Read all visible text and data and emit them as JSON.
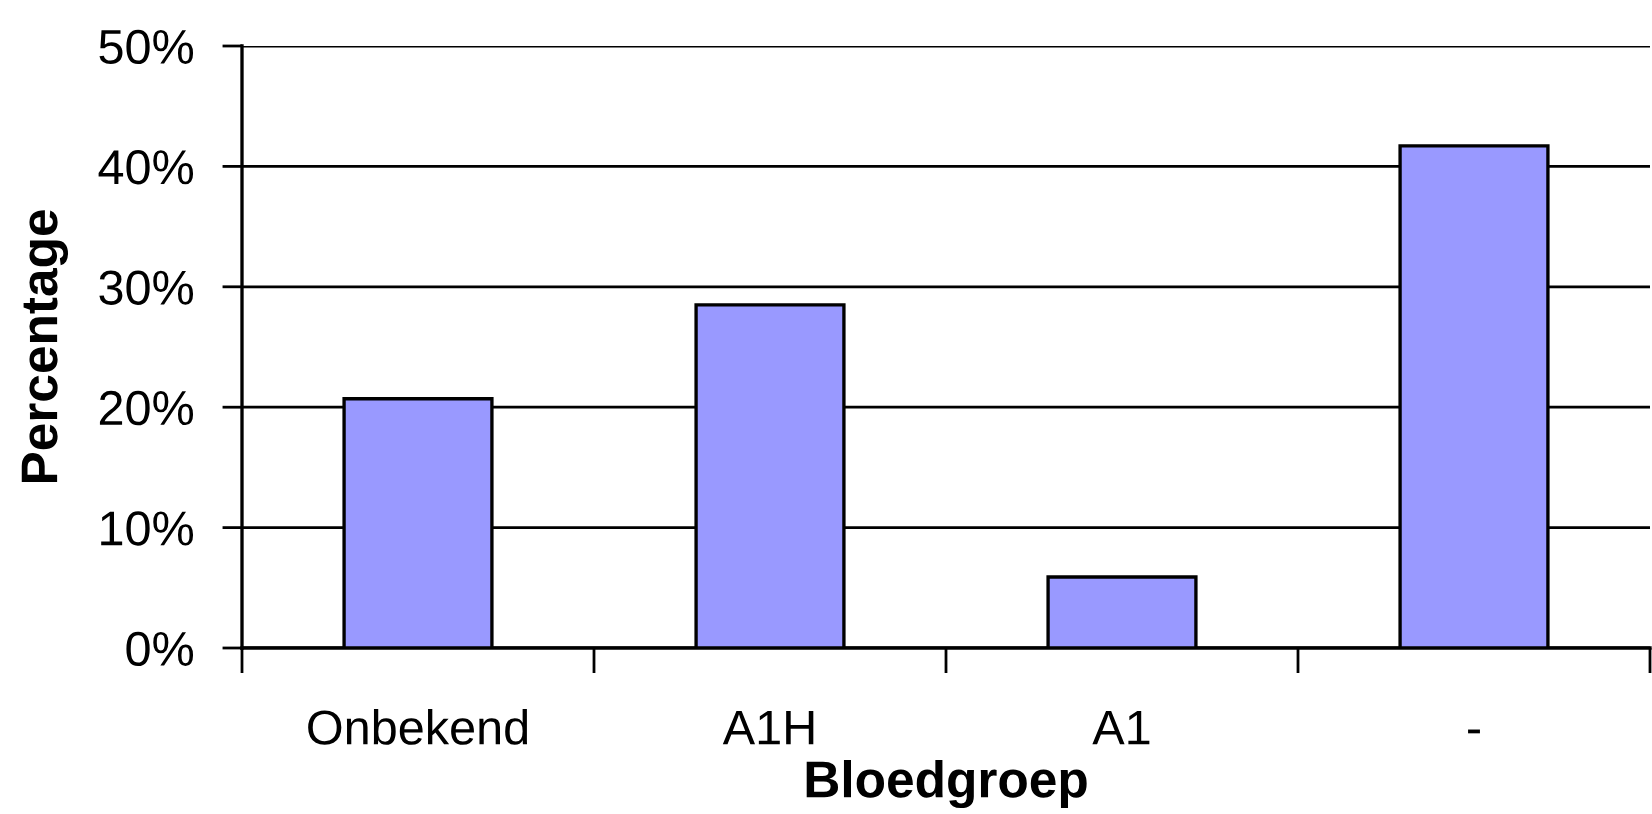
{
  "chart_data": {
    "type": "bar",
    "xlabel": "Bloedgroep",
    "ylabel": "Percentage",
    "categories": [
      "Onbekend",
      "A1H",
      "A1",
      "-"
    ],
    "values": [
      20.7,
      28.5,
      5.9,
      41.7
    ],
    "color": "#9999ff",
    "ylim": [
      0,
      50
    ],
    "yticks": [
      {
        "value": 0,
        "label": "0%"
      },
      {
        "value": 10,
        "label": "10%"
      },
      {
        "value": 20,
        "label": "20%"
      },
      {
        "value": 30,
        "label": "30%"
      },
      {
        "value": 40,
        "label": "40%"
      },
      {
        "value": 50,
        "label": "50%"
      }
    ],
    "grid": "y"
  }
}
